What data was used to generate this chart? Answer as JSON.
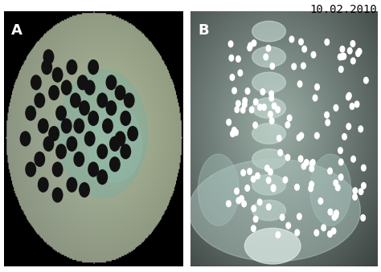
{
  "background_color": "#ffffff",
  "date_text": "10.02.2010",
  "label_A": "A",
  "label_B": "B",
  "panel_A": {
    "dot_color": "#111111",
    "dot_size": 4.5
  },
  "panel_B": {
    "dot_color": "#ffffff",
    "dot_size": 2.5
  },
  "label_fontsize": 13,
  "date_fontsize": 10
}
